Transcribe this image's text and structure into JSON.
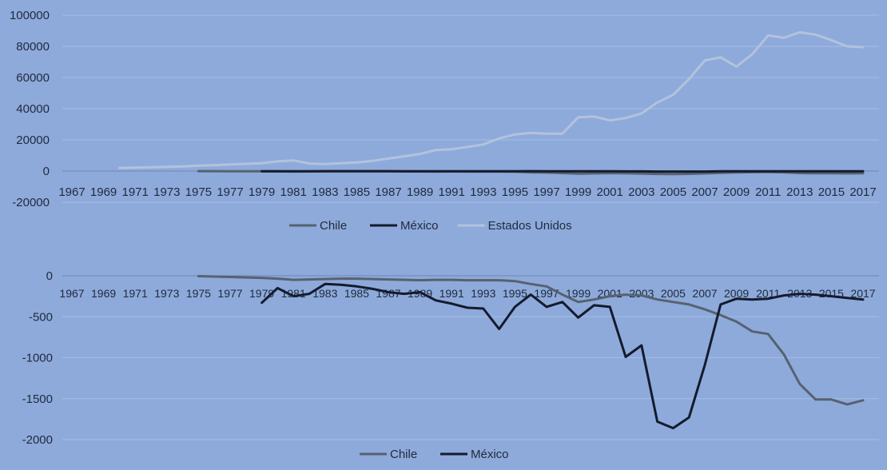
{
  "chart_data": [
    {
      "type": "line",
      "title": "",
      "xlabel": "",
      "ylabel": "",
      "ylim": [
        -20000,
        100000
      ],
      "yticks": [
        -20000,
        0,
        20000,
        40000,
        60000,
        80000,
        100000
      ],
      "x_ticks": [
        "1967",
        "1969",
        "1971",
        "1973",
        "1975",
        "1977",
        "1979",
        "1981",
        "1983",
        "1985",
        "1987",
        "1989",
        "1991",
        "1993",
        "1995",
        "1997",
        "1999",
        "2001",
        "2003",
        "2005",
        "2007",
        "2009",
        "2011",
        "2013",
        "2015",
        "2017"
      ],
      "grid": true,
      "legend": "bottom",
      "series": [
        {
          "name": "Chile",
          "color": "#566270",
          "x": [
            1975,
            1976,
            1977,
            1978,
            1979,
            1980,
            1981,
            1982,
            1983,
            1984,
            1985,
            1986,
            1987,
            1988,
            1989,
            1990,
            1991,
            1992,
            1993,
            1994,
            1995,
            1996,
            1997,
            1998,
            1999,
            2000,
            2001,
            2002,
            2003,
            2004,
            2005,
            2006,
            2007,
            2008,
            2009,
            2010,
            2011,
            2012,
            2013,
            2014,
            2015,
            2016,
            2017
          ],
          "values": [
            -30,
            -50,
            -80,
            -100,
            -150,
            -200,
            -300,
            -250,
            -220,
            -200,
            -180,
            -200,
            -220,
            -260,
            -280,
            -300,
            -280,
            -300,
            -320,
            -330,
            -400,
            -800,
            -1000,
            -1300,
            -1700,
            -1500,
            -1350,
            -1400,
            -1600,
            -1850,
            -1950,
            -1800,
            -1500,
            -1200,
            -900,
            -700,
            -650,
            -800,
            -1300,
            -1450,
            -1450,
            -1500,
            -1450
          ]
        },
        {
          "name": "México",
          "color": "#141b2d",
          "x": [
            1979,
            1980,
            1981,
            1982,
            1983,
            1984,
            1985,
            1986,
            1987,
            1988,
            1989,
            1990,
            1991,
            1992,
            1993,
            1994,
            1995,
            1996,
            1997,
            1998,
            1999,
            2000,
            2001,
            2002,
            2003,
            2004,
            2005,
            2006,
            2007,
            2008,
            2009,
            2010,
            2011,
            2012,
            2013,
            2014,
            2015,
            2016,
            2017
          ],
          "values": [
            -100,
            -80,
            -90,
            -80,
            -60,
            -60,
            -60,
            -60,
            -70,
            -80,
            -90,
            -100,
            -100,
            -100,
            -100,
            -120,
            -90,
            -70,
            -100,
            -90,
            -120,
            -100,
            -100,
            -200,
            -200,
            -300,
            -300,
            -300,
            -300,
            -100,
            -90,
            -100,
            -100,
            -100,
            -100,
            -100,
            -100,
            -100,
            -100
          ]
        },
        {
          "name": "Estados Unidos",
          "color": "#b3c2dc",
          "x": [
            1970,
            1971,
            1972,
            1973,
            1974,
            1975,
            1976,
            1977,
            1978,
            1979,
            1980,
            1981,
            1982,
            1983,
            1984,
            1985,
            1986,
            1987,
            1988,
            1989,
            1990,
            1991,
            1992,
            1993,
            1994,
            1995,
            1996,
            1997,
            1998,
            1999,
            2000,
            2001,
            2002,
            2003,
            2004,
            2005,
            2006,
            2007,
            2008,
            2009,
            2010,
            2011,
            2012,
            2013,
            2014,
            2015,
            2016,
            2017
          ],
          "values": [
            2000,
            2200,
            2400,
            2700,
            3000,
            3500,
            3800,
            4200,
            4600,
            5000,
            6200,
            6800,
            4800,
            4500,
            5000,
            5500,
            6500,
            8000,
            9500,
            11000,
            13500,
            14000,
            15500,
            17000,
            21000,
            23500,
            24500,
            24000,
            24000,
            34500,
            35000,
            32500,
            34000,
            37000,
            44000,
            49000,
            59000,
            71000,
            73000,
            67000,
            75000,
            87000,
            85500,
            89000,
            87500,
            84000,
            80000,
            79500
          ]
        }
      ]
    },
    {
      "type": "line",
      "title": "",
      "xlabel": "",
      "ylabel": "",
      "ylim": [
        -2000,
        0
      ],
      "yticks": [
        -2000,
        -1500,
        -1000,
        -500,
        0
      ],
      "x_ticks": [
        "1967",
        "1969",
        "1971",
        "1973",
        "1975",
        "1977",
        "1979",
        "1981",
        "1983",
        "1985",
        "1987",
        "1989",
        "1991",
        "1993",
        "1995",
        "1997",
        "1999",
        "2001",
        "2003",
        "2005",
        "2007",
        "2009",
        "2011",
        "2013",
        "2015",
        "2017"
      ],
      "grid": true,
      "legend": "bottom",
      "series": [
        {
          "name": "Chile",
          "color": "#566270",
          "x": [
            1975,
            1976,
            1977,
            1978,
            1979,
            1980,
            1981,
            1982,
            1983,
            1984,
            1985,
            1986,
            1987,
            1988,
            1989,
            1990,
            1991,
            1992,
            1993,
            1994,
            1995,
            1996,
            1997,
            1998,
            1999,
            2000,
            2001,
            2002,
            2003,
            2004,
            2005,
            2006,
            2007,
            2008,
            2009,
            2010,
            2011,
            2012,
            2013,
            2014,
            2015,
            2016,
            2017
          ],
          "values": [
            -5,
            -10,
            -15,
            -20,
            -25,
            -35,
            -50,
            -45,
            -40,
            -35,
            -35,
            -40,
            -45,
            -50,
            -55,
            -50,
            -50,
            -55,
            -55,
            -55,
            -65,
            -100,
            -130,
            -230,
            -320,
            -290,
            -250,
            -230,
            -240,
            -290,
            -320,
            -350,
            -410,
            -480,
            -560,
            -680,
            -710,
            -960,
            -1320,
            -1510,
            -1510,
            -1570,
            -1520
          ]
        },
        {
          "name": "México",
          "color": "#141b2d",
          "x": [
            1979,
            1980,
            1981,
            1982,
            1983,
            1984,
            1985,
            1986,
            1987,
            1988,
            1989,
            1990,
            1991,
            1992,
            1993,
            1994,
            1995,
            1996,
            1997,
            1998,
            1999,
            2000,
            2001,
            2002,
            2003,
            2004,
            2005,
            2006,
            2007,
            2008,
            2009,
            2010,
            2011,
            2012,
            2013,
            2014,
            2015,
            2016,
            2017
          ],
          "values": [
            -330,
            -150,
            -250,
            -220,
            -100,
            -110,
            -130,
            -160,
            -200,
            -220,
            -200,
            -300,
            -340,
            -390,
            -400,
            -650,
            -380,
            -230,
            -380,
            -320,
            -510,
            -360,
            -380,
            -990,
            -850,
            -1780,
            -1860,
            -1730,
            -1090,
            -350,
            -280,
            -290,
            -280,
            -240,
            -220,
            -230,
            -250,
            -270,
            -290
          ]
        }
      ]
    }
  ]
}
